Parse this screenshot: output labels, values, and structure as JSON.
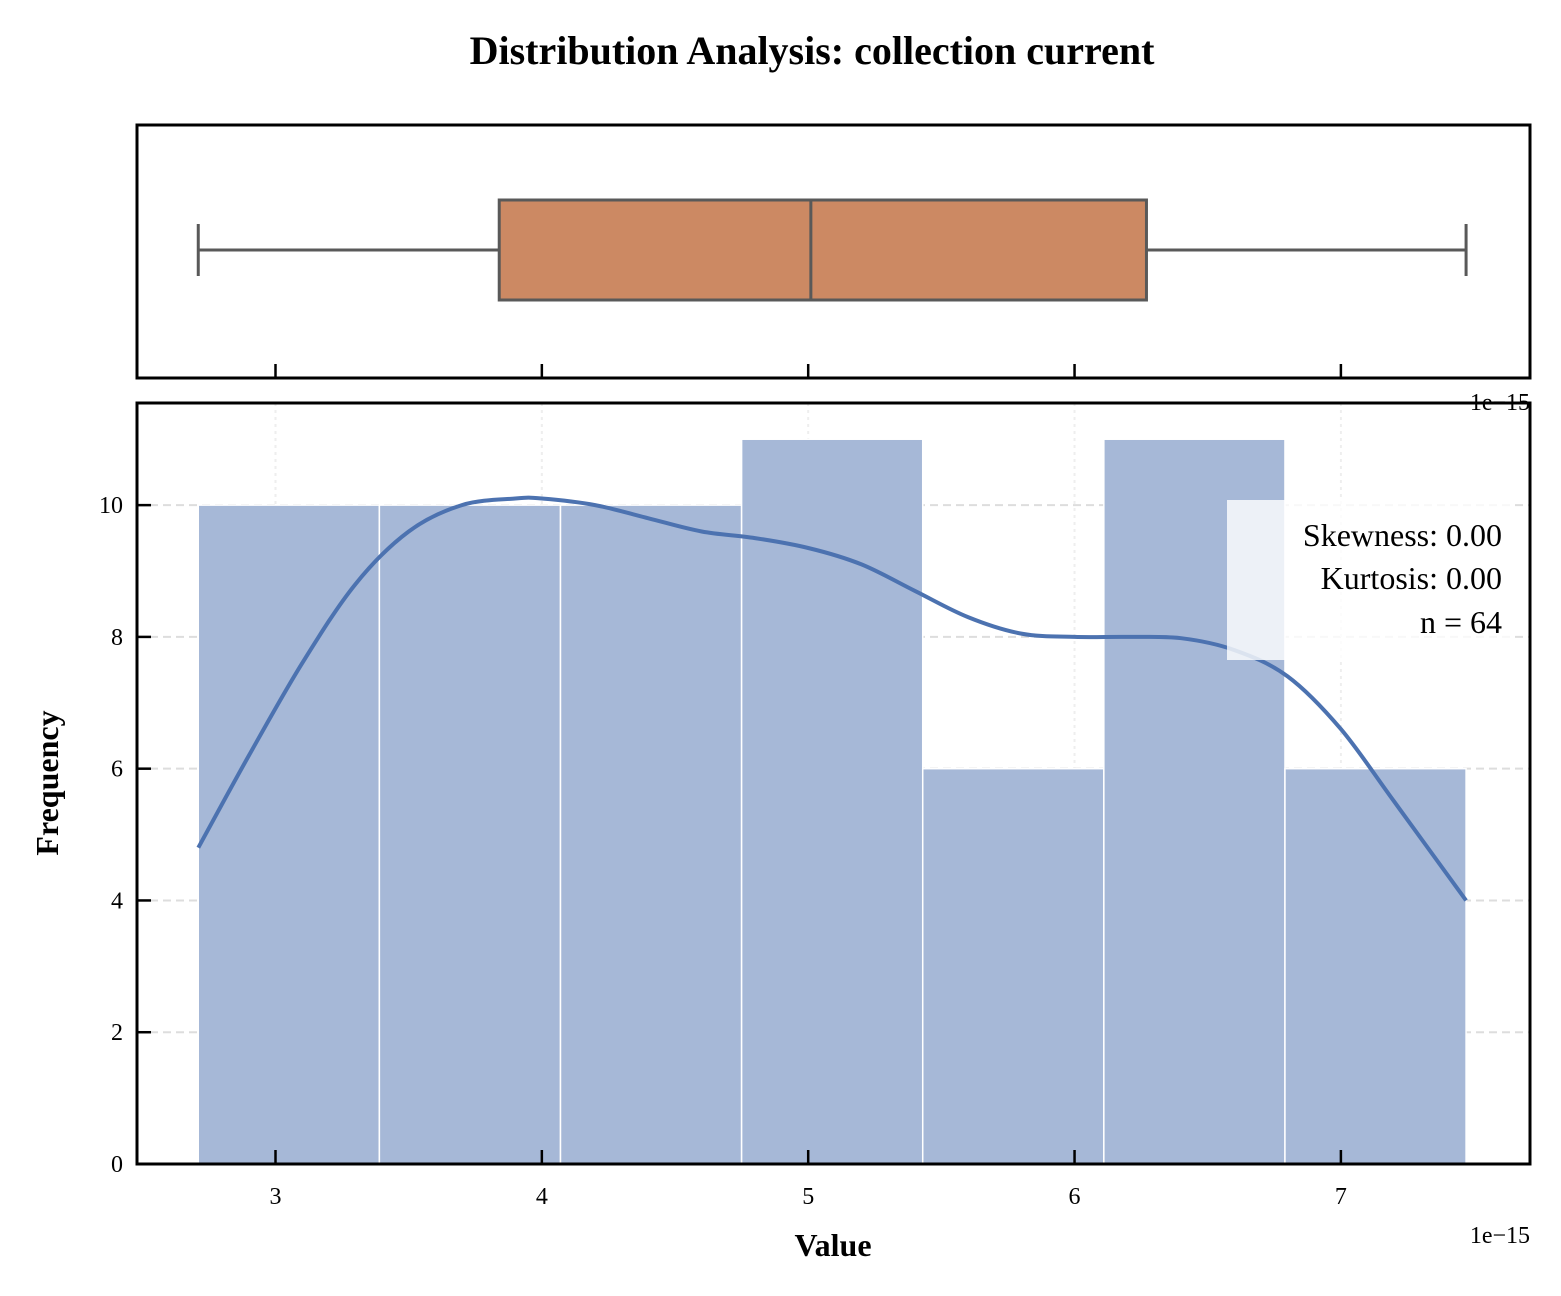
{
  "chart_data": {
    "type": "histogram",
    "title": "Distribution Analysis: collection current",
    "xlabel": "Value",
    "ylabel": "Frequency",
    "x_offset_text": "1e−15",
    "top_offset_text": "1e−15",
    "xlim": [
      2.48,
      7.71
    ],
    "ylim": [
      0,
      11.55
    ],
    "x_ticks": [
      3,
      4,
      5,
      6,
      7
    ],
    "x_tick_labels": [
      "3",
      "4",
      "5",
      "6",
      "7"
    ],
    "y_ticks": [
      0,
      2,
      4,
      6,
      8,
      10
    ],
    "y_tick_labels": [
      "0",
      "2",
      "4",
      "6",
      "8",
      "10"
    ],
    "grid": true,
    "bins": [
      {
        "start": 2.71,
        "end": 3.39,
        "count": 10
      },
      {
        "start": 3.39,
        "end": 4.07,
        "count": 10
      },
      {
        "start": 4.07,
        "end": 4.75,
        "count": 10
      },
      {
        "start": 4.75,
        "end": 5.43,
        "count": 11
      },
      {
        "start": 5.43,
        "end": 6.11,
        "count": 6
      },
      {
        "start": 6.11,
        "end": 6.79,
        "count": 11
      },
      {
        "start": 6.79,
        "end": 7.47,
        "count": 6
      }
    ],
    "kde": {
      "x": [
        2.71,
        2.9,
        3.1,
        3.3,
        3.5,
        3.7,
        3.9,
        4.0,
        4.2,
        4.4,
        4.6,
        4.8,
        5.0,
        5.2,
        5.4,
        5.6,
        5.8,
        6.0,
        6.2,
        6.4,
        6.6,
        6.8,
        7.0,
        7.2,
        7.47
      ],
      "y": [
        4.8,
        6.2,
        7.6,
        8.8,
        9.6,
        10.0,
        10.1,
        10.1,
        10.0,
        9.8,
        9.6,
        9.5,
        9.35,
        9.1,
        8.7,
        8.3,
        8.05,
        8.0,
        8.0,
        7.98,
        7.8,
        7.4,
        6.6,
        5.5,
        4.0
      ]
    },
    "boxplot": {
      "whisker_low": 2.71,
      "q1": 3.84,
      "median": 5.01,
      "q3": 6.27,
      "whisker_high": 7.47
    },
    "stats_box": {
      "skewness": "Skewness: 0.00",
      "kurtosis": "Kurtosis: 0.00",
      "n": "n = 64"
    },
    "colors": {
      "bar": "#a6b8d7",
      "kde_line": "#4c72b0",
      "box_fill": "#cc8963",
      "box_edge": "#595959",
      "grid": "#dddddd"
    }
  }
}
